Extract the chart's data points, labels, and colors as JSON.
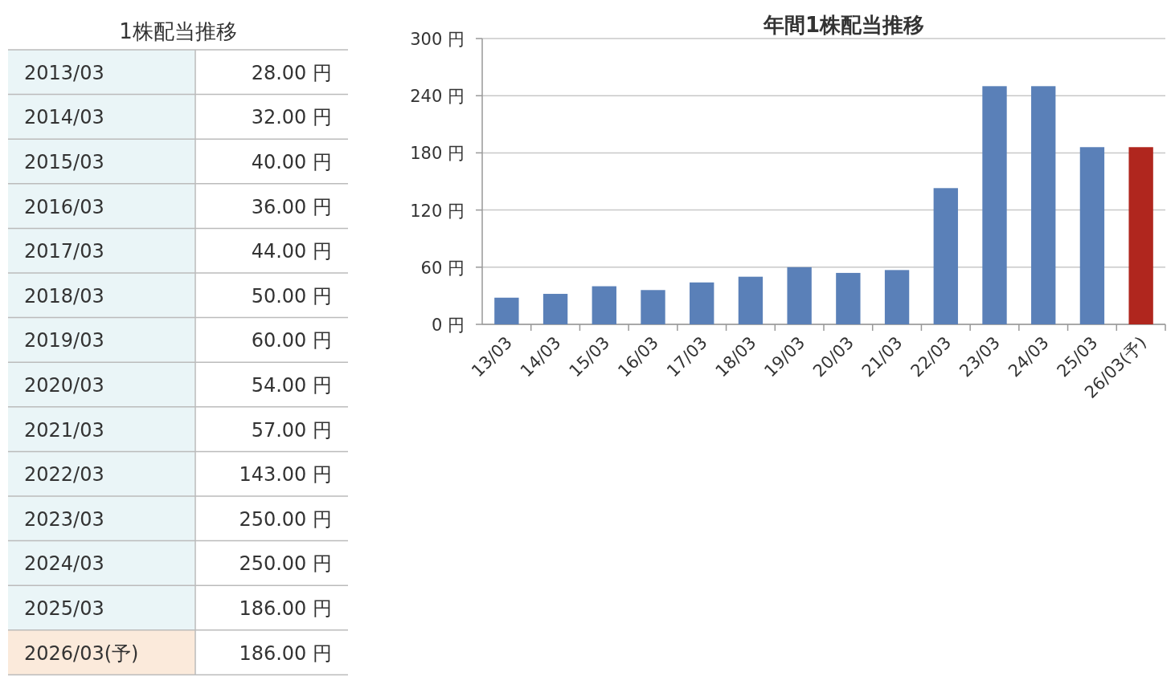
{
  "chart_data": [
    {
      "type": "other",
      "title": "1株配当推移",
      "categories": [
        "2013/03",
        "2014/03",
        "2015/03",
        "2016/03",
        "2017/03",
        "2018/03",
        "2019/03",
        "2020/03",
        "2021/03",
        "2022/03",
        "2023/03",
        "2024/03",
        "2025/03",
        "2026/03(予)"
      ],
      "values": [
        28,
        32,
        40,
        36,
        44,
        50,
        60,
        54,
        57,
        143,
        250,
        250,
        186,
        186
      ],
      "value_labels": [
        "28.00 円",
        "32.00 円",
        "40.00 円",
        "36.00 円",
        "44.00 円",
        "50.00 円",
        "60.00 円",
        "54.00 円",
        "57.00 円",
        "143.00 円",
        "250.00 円",
        "250.00 円",
        "186.00 円",
        "186.00 円"
      ],
      "colors": [
        "#eaf5f7",
        "#eaf5f7",
        "#eaf5f7",
        "#eaf5f7",
        "#eaf5f7",
        "#eaf5f7",
        "#eaf5f7",
        "#eaf5f7",
        "#eaf5f7",
        "#eaf5f7",
        "#eaf5f7",
        "#eaf5f7",
        "#eaf5f7",
        "#fbeadb"
      ]
    },
    {
      "type": "bar",
      "title": "年間1株配当推移",
      "categories": [
        "13/03",
        "14/03",
        "15/03",
        "16/03",
        "17/03",
        "18/03",
        "19/03",
        "20/03",
        "21/03",
        "22/03",
        "23/03",
        "24/03",
        "25/03",
        "26/03(予)"
      ],
      "values": [
        28,
        32,
        40,
        36,
        44,
        50,
        60,
        54,
        57,
        143,
        250,
        250,
        186,
        186
      ],
      "colors": [
        "#5a80b8",
        "#5a80b8",
        "#5a80b8",
        "#5a80b8",
        "#5a80b8",
        "#5a80b8",
        "#5a80b8",
        "#5a80b8",
        "#5a80b8",
        "#5a80b8",
        "#5a80b8",
        "#5a80b8",
        "#5a80b8",
        "#b0261e"
      ],
      "ylim": [
        0,
        300
      ],
      "yticks": [
        {
          "value": 0,
          "label": "0 円"
        },
        {
          "value": 60,
          "label": "60 円"
        },
        {
          "value": 120,
          "label": "120 円"
        },
        {
          "value": 180,
          "label": "180 円"
        },
        {
          "value": 240,
          "label": "240 円"
        },
        {
          "value": 300,
          "label": "300 円"
        }
      ],
      "grid": "y"
    }
  ]
}
